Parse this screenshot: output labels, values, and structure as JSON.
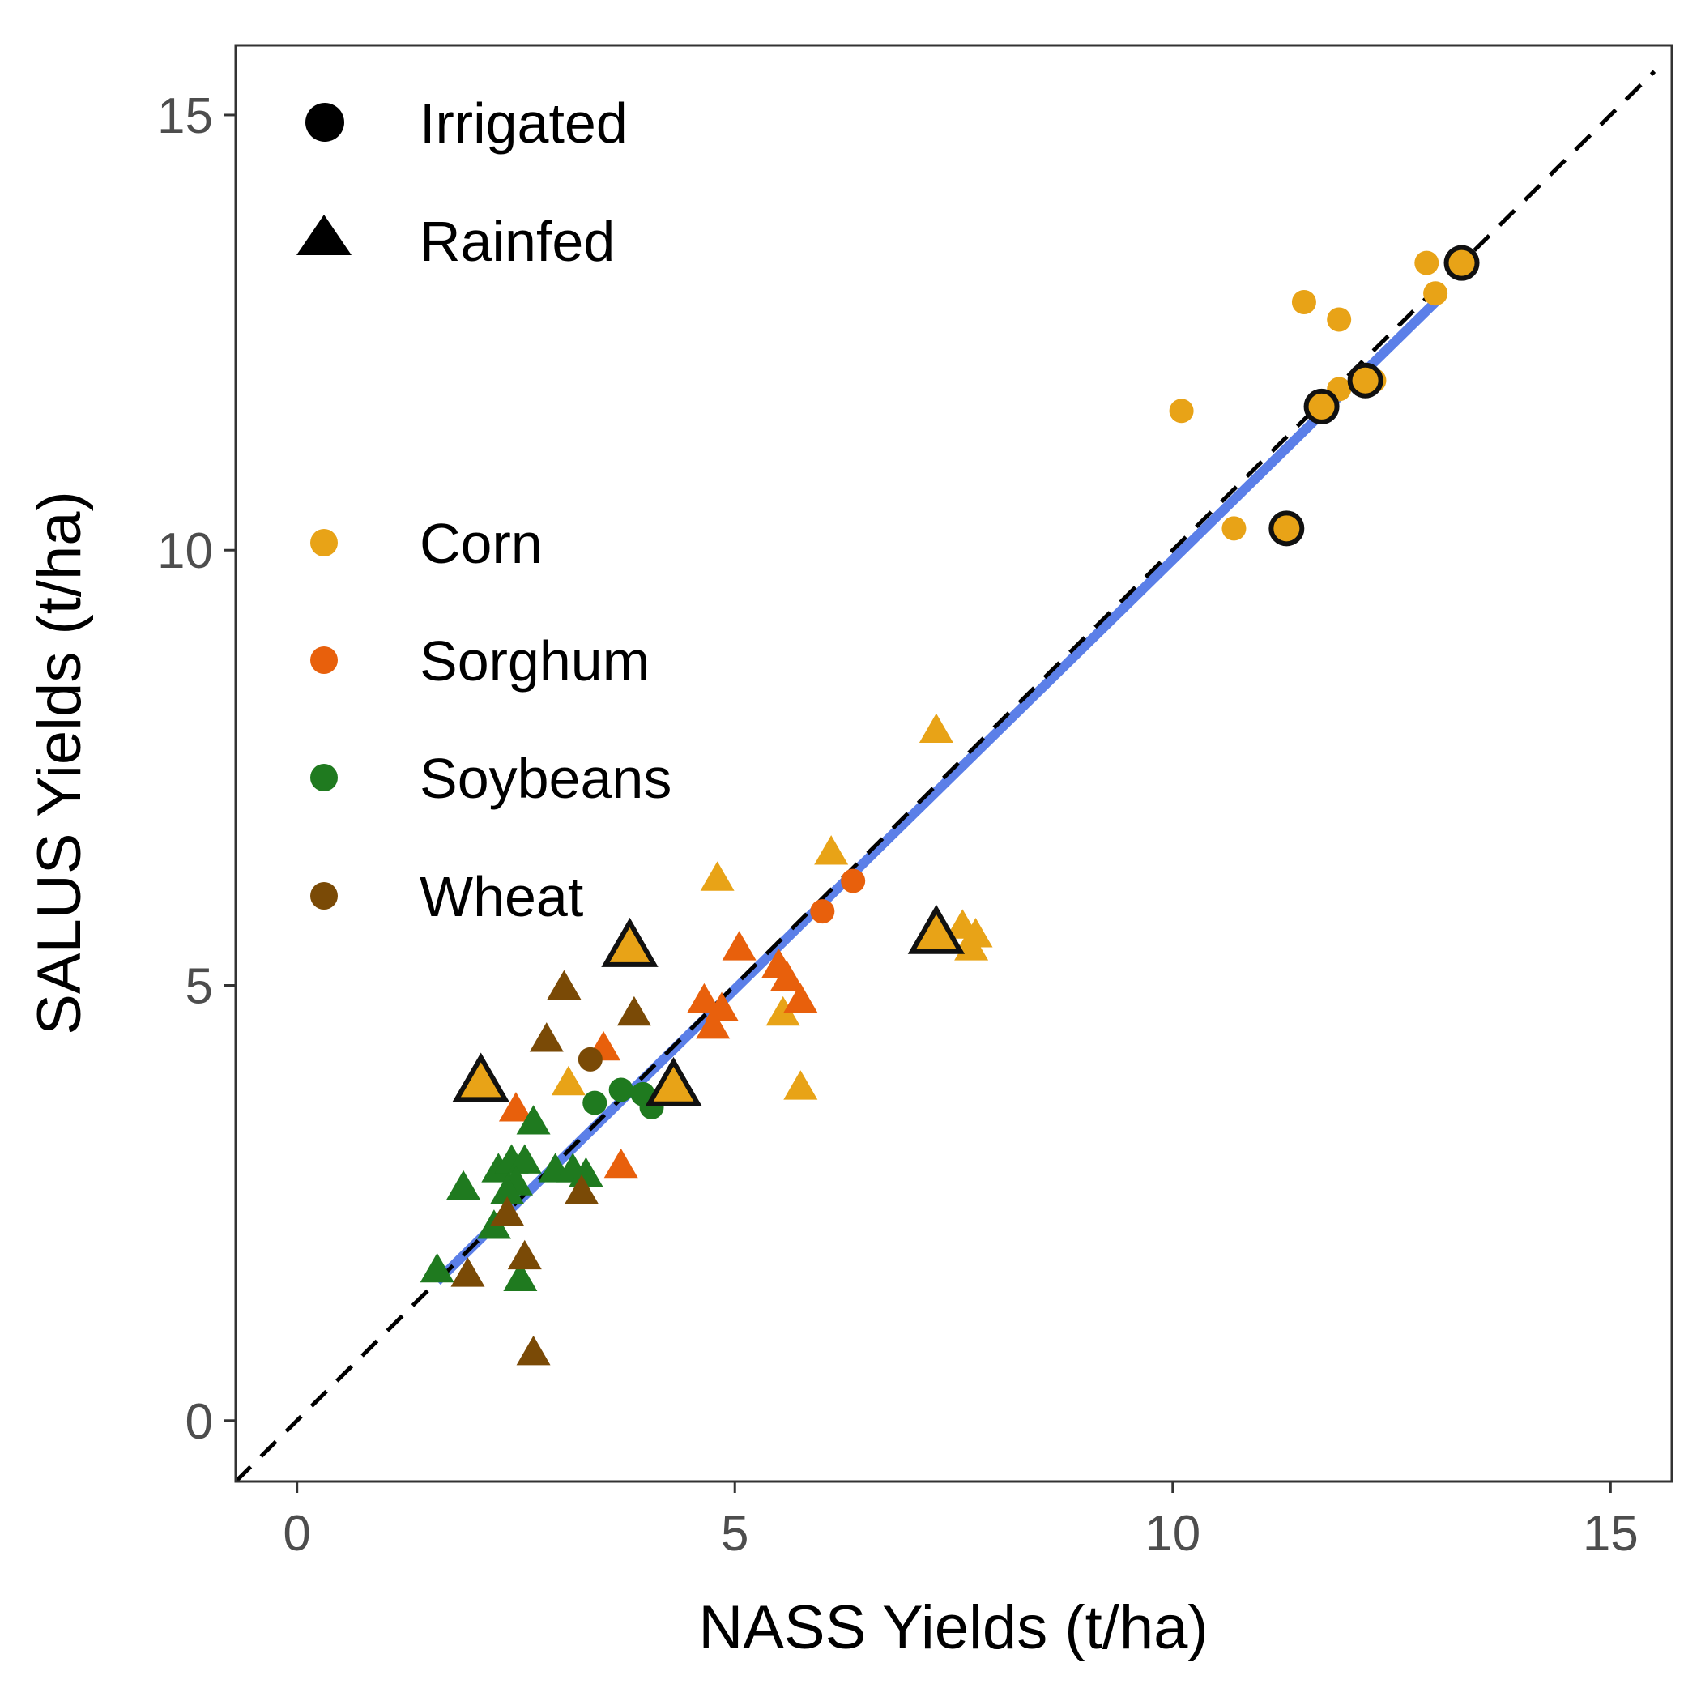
{
  "chart_data": {
    "type": "scatter",
    "xlabel": "NASS Yields (t/ha)",
    "ylabel": "SALUS Yields (t/ha)",
    "xlim": [
      -0.7,
      15.7
    ],
    "ylim": [
      -0.7,
      15.8
    ],
    "xticks": [
      0,
      5,
      10,
      15
    ],
    "yticks": [
      0,
      5,
      10,
      15
    ],
    "xtick_labels": [
      "0",
      "5",
      "10",
      "15"
    ],
    "ytick_labels": [
      "0",
      "5",
      "10",
      "15"
    ],
    "grid": false,
    "identity_line": {
      "style": "dashed",
      "color": "#000000",
      "from": [
        -0.7,
        -0.7
      ],
      "to": [
        15.5,
        15.5
      ]
    },
    "fit_line": {
      "color": "#5b7fe8",
      "from": [
        1.6,
        1.6
      ],
      "to": [
        13.0,
        12.85
      ]
    },
    "shape_legend": {
      "position": "top-left",
      "items": [
        {
          "label": "Irrigated",
          "shape": "circle"
        },
        {
          "label": "Rainfed",
          "shape": "triangle"
        }
      ]
    },
    "color_legend": {
      "position": "left",
      "items": [
        {
          "label": "Corn",
          "color": "#e8a317"
        },
        {
          "label": "Sorghum",
          "color": "#e8600c"
        },
        {
          "label": "Soybeans",
          "color": "#1f7a1f"
        },
        {
          "label": "Wheat",
          "color": "#7a4a06"
        }
      ]
    },
    "series": [
      {
        "name": "Corn",
        "color": "#e8a317",
        "points": [
          {
            "x": 10.1,
            "y": 11.6,
            "shape": "circle"
          },
          {
            "x": 10.7,
            "y": 10.25,
            "shape": "circle"
          },
          {
            "x": 11.5,
            "y": 12.85,
            "shape": "circle"
          },
          {
            "x": 11.9,
            "y": 12.65,
            "shape": "circle"
          },
          {
            "x": 12.9,
            "y": 13.3,
            "shape": "circle"
          },
          {
            "x": 13.0,
            "y": 12.95,
            "shape": "circle"
          },
          {
            "x": 11.9,
            "y": 11.85,
            "shape": "circle"
          },
          {
            "x": 12.3,
            "y": 11.95,
            "shape": "circle"
          },
          {
            "x": 11.3,
            "y": 10.25,
            "shape": "circle",
            "outlined": true
          },
          {
            "x": 11.7,
            "y": 11.65,
            "shape": "circle",
            "outlined": true
          },
          {
            "x": 12.2,
            "y": 11.95,
            "shape": "circle",
            "outlined": true
          },
          {
            "x": 13.3,
            "y": 13.3,
            "shape": "circle",
            "outlined": true
          },
          {
            "x": 7.3,
            "y": 7.9,
            "shape": "triangle"
          },
          {
            "x": 6.1,
            "y": 6.5,
            "shape": "triangle"
          },
          {
            "x": 4.8,
            "y": 6.2,
            "shape": "triangle"
          },
          {
            "x": 7.6,
            "y": 5.65,
            "shape": "triangle"
          },
          {
            "x": 7.75,
            "y": 5.55,
            "shape": "triangle"
          },
          {
            "x": 7.7,
            "y": 5.4,
            "shape": "triangle"
          },
          {
            "x": 5.55,
            "y": 4.65,
            "shape": "triangle"
          },
          {
            "x": 5.75,
            "y": 3.8,
            "shape": "triangle"
          },
          {
            "x": 3.1,
            "y": 3.85,
            "shape": "triangle"
          },
          {
            "x": 3.8,
            "y": 5.4,
            "shape": "triangle",
            "outlined": true
          },
          {
            "x": 7.3,
            "y": 5.55,
            "shape": "triangle",
            "outlined": true
          },
          {
            "x": 2.1,
            "y": 3.85,
            "shape": "triangle",
            "outlined": true
          },
          {
            "x": 4.3,
            "y": 3.8,
            "shape": "triangle",
            "outlined": true
          }
        ]
      },
      {
        "name": "Sorghum",
        "color": "#e8600c",
        "points": [
          {
            "x": 6.0,
            "y": 5.85,
            "shape": "circle"
          },
          {
            "x": 6.35,
            "y": 6.2,
            "shape": "circle"
          },
          {
            "x": 5.05,
            "y": 5.4,
            "shape": "triangle"
          },
          {
            "x": 5.5,
            "y": 5.2,
            "shape": "triangle"
          },
          {
            "x": 5.6,
            "y": 5.05,
            "shape": "triangle"
          },
          {
            "x": 5.75,
            "y": 4.8,
            "shape": "triangle"
          },
          {
            "x": 4.65,
            "y": 4.8,
            "shape": "triangle"
          },
          {
            "x": 4.85,
            "y": 4.7,
            "shape": "triangle"
          },
          {
            "x": 4.75,
            "y": 4.5,
            "shape": "triangle"
          },
          {
            "x": 3.5,
            "y": 4.25,
            "shape": "triangle"
          },
          {
            "x": 2.5,
            "y": 3.55,
            "shape": "triangle"
          },
          {
            "x": 3.7,
            "y": 2.9,
            "shape": "triangle"
          }
        ]
      },
      {
        "name": "Soybeans",
        "color": "#1f7a1f",
        "points": [
          {
            "x": 3.4,
            "y": 3.65,
            "shape": "circle"
          },
          {
            "x": 3.7,
            "y": 3.8,
            "shape": "circle"
          },
          {
            "x": 4.05,
            "y": 3.6,
            "shape": "circle"
          },
          {
            "x": 3.95,
            "y": 3.75,
            "shape": "circle"
          },
          {
            "x": 2.7,
            "y": 3.4,
            "shape": "triangle"
          },
          {
            "x": 1.9,
            "y": 2.65,
            "shape": "triangle"
          },
          {
            "x": 2.3,
            "y": 2.85,
            "shape": "triangle"
          },
          {
            "x": 2.45,
            "y": 2.95,
            "shape": "triangle"
          },
          {
            "x": 2.6,
            "y": 2.95,
            "shape": "triangle"
          },
          {
            "x": 2.5,
            "y": 2.7,
            "shape": "triangle"
          },
          {
            "x": 2.4,
            "y": 2.6,
            "shape": "triangle"
          },
          {
            "x": 2.95,
            "y": 2.85,
            "shape": "triangle"
          },
          {
            "x": 3.15,
            "y": 2.85,
            "shape": "triangle"
          },
          {
            "x": 3.3,
            "y": 2.8,
            "shape": "triangle"
          },
          {
            "x": 2.25,
            "y": 2.2,
            "shape": "triangle"
          },
          {
            "x": 1.6,
            "y": 1.7,
            "shape": "triangle"
          },
          {
            "x": 2.55,
            "y": 1.6,
            "shape": "triangle"
          }
        ]
      },
      {
        "name": "Wheat",
        "color": "#7a4a06",
        "points": [
          {
            "x": 3.35,
            "y": 4.15,
            "shape": "circle"
          },
          {
            "x": 3.05,
            "y": 4.95,
            "shape": "triangle"
          },
          {
            "x": 3.85,
            "y": 4.65,
            "shape": "triangle"
          },
          {
            "x": 2.85,
            "y": 4.35,
            "shape": "triangle"
          },
          {
            "x": 3.25,
            "y": 2.6,
            "shape": "triangle"
          },
          {
            "x": 2.4,
            "y": 2.35,
            "shape": "triangle"
          },
          {
            "x": 2.6,
            "y": 1.85,
            "shape": "triangle"
          },
          {
            "x": 1.95,
            "y": 1.65,
            "shape": "triangle"
          },
          {
            "x": 2.7,
            "y": 0.75,
            "shape": "triangle"
          }
        ]
      }
    ]
  }
}
